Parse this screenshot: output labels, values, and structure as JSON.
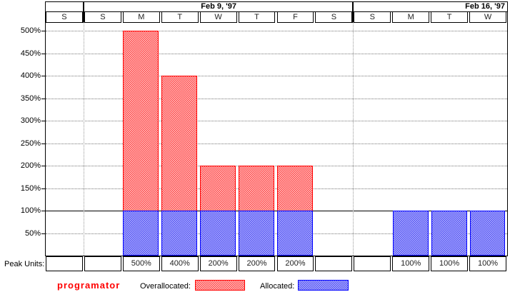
{
  "timescale": {
    "weeks": [
      {
        "label": "",
        "days": [
          "S"
        ]
      },
      {
        "label": "Feb 9, '97",
        "days": [
          "S",
          "M",
          "T",
          "W",
          "T",
          "F",
          "S"
        ]
      },
      {
        "label": "Feb 16, '97",
        "days": [
          "S",
          "M",
          "T",
          "W"
        ]
      }
    ]
  },
  "y_axis": {
    "tick_labels": [
      "500%",
      "450%",
      "400%",
      "350%",
      "300%",
      "250%",
      "200%",
      "150%",
      "100%",
      "50%"
    ],
    "tick_values": [
      500,
      450,
      400,
      350,
      300,
      250,
      200,
      150,
      100,
      50
    ]
  },
  "peak_units": {
    "row_label": "Peak Units:",
    "cells": [
      "",
      "",
      "500%",
      "400%",
      "200%",
      "200%",
      "200%",
      "",
      "",
      "100%",
      "100%",
      "100%"
    ]
  },
  "legend": {
    "resource_name": "programator",
    "overallocated_label": "Overallocated:",
    "allocated_label": "Allocated:"
  },
  "colors": {
    "overallocated_border": "#ff0000",
    "overallocated_fill_dark": "#ff4545",
    "overallocated_fill_light": "#ffc6c6",
    "allocated_border": "#0000ff",
    "allocated_fill_dark": "#5353f2",
    "allocated_fill_light": "#b2b2ff",
    "resource_name_color": "#ff0000",
    "grid_color": "#777777"
  },
  "chart_data": {
    "type": "bar",
    "title": "",
    "categories": [
      "S",
      "S",
      "M",
      "T",
      "W",
      "T",
      "F",
      "S",
      "S",
      "M",
      "T",
      "W"
    ],
    "week_sections": [
      {
        "label": "",
        "num_days": 1
      },
      {
        "label": "Feb 9, '97",
        "num_days": 7
      },
      {
        "label": "Feb 16, '97",
        "num_days": 4
      }
    ],
    "series": [
      {
        "name": "Allocated",
        "values": [
          0,
          0,
          100,
          100,
          100,
          100,
          100,
          0,
          0,
          100,
          100,
          100
        ]
      },
      {
        "name": "Overallocated",
        "values": [
          0,
          0,
          400,
          300,
          100,
          100,
          100,
          0,
          0,
          0,
          0,
          0
        ]
      }
    ],
    "peak_units_pct": [
      null,
      null,
      500,
      400,
      200,
      200,
      200,
      null,
      null,
      100,
      100,
      100
    ],
    "ylabel": "",
    "xlabel": "",
    "ylim": [
      0,
      530
    ],
    "ytick_step_pct": 50,
    "max_units_line_pct": 100,
    "grid": "dotted horizontal lines every 50%; dotted vertical lines at week boundaries",
    "legend_position": "bottom"
  }
}
